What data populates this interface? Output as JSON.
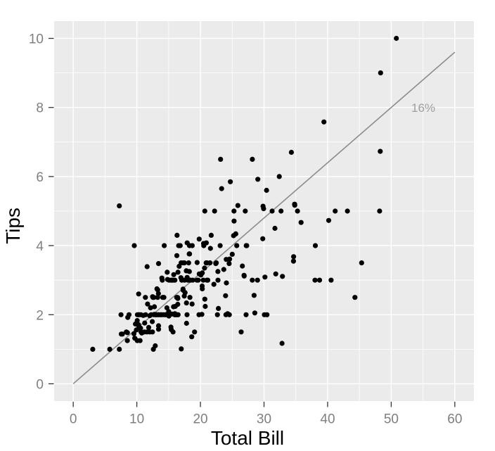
{
  "chart_data": {
    "type": "scatter",
    "title": "",
    "xlabel": "Total Bill",
    "ylabel": "Tips",
    "xlim": [
      -3,
      63
    ],
    "ylim": [
      -0.5,
      10.5
    ],
    "x_ticks": [
      0,
      10,
      20,
      30,
      40,
      50,
      60
    ],
    "y_ticks": [
      0,
      2,
      4,
      6,
      8,
      10
    ],
    "x_minor": [
      5,
      15,
      25,
      35,
      45,
      55
    ],
    "y_minor": [
      1,
      3,
      5,
      7,
      9
    ],
    "grid": true,
    "legend": "none",
    "panel_bg": "#EBEBEB",
    "grid_color": "#FFFFFF",
    "point_color": "#000000",
    "tick_color": "#333333",
    "tick_label_color": "#7F7F7F",
    "line": {
      "x1": 0,
      "y1": 0,
      "x2": 60,
      "y2": 9.6,
      "color": "#8C8C8C",
      "label": "16%",
      "label_x": 55,
      "label_y": 8,
      "label_color": "#9E9E9E"
    },
    "points": [
      [
        16.99,
        1.01
      ],
      [
        10.34,
        1.66
      ],
      [
        21.01,
        3.5
      ],
      [
        23.68,
        3.31
      ],
      [
        24.59,
        3.61
      ],
      [
        25.29,
        4.71
      ],
      [
        8.77,
        2
      ],
      [
        26.88,
        3.12
      ],
      [
        15.04,
        1.96
      ],
      [
        14.78,
        3.23
      ],
      [
        10.27,
        1.71
      ],
      [
        35.26,
        5
      ],
      [
        15.42,
        1.57
      ],
      [
        18.43,
        3
      ],
      [
        14.83,
        3.02
      ],
      [
        21.58,
        3.92
      ],
      [
        10.33,
        1.67
      ],
      [
        16.29,
        3.71
      ],
      [
        16.97,
        3.5
      ],
      [
        20.65,
        3.35
      ],
      [
        17.92,
        4.08
      ],
      [
        20.29,
        2.75
      ],
      [
        15.77,
        2.23
      ],
      [
        39.42,
        7.58
      ],
      [
        19.82,
        3.18
      ],
      [
        17.81,
        2.34
      ],
      [
        13.37,
        2
      ],
      [
        12.69,
        2
      ],
      [
        21.7,
        4.3
      ],
      [
        19.65,
        3
      ],
      [
        9.55,
        1.45
      ],
      [
        18.35,
        2.5
      ],
      [
        15.06,
        3
      ],
      [
        20.69,
        2.45
      ],
      [
        17.78,
        3.27
      ],
      [
        24.06,
        3.6
      ],
      [
        16.31,
        2
      ],
      [
        16.93,
        3.07
      ],
      [
        18.69,
        2.31
      ],
      [
        31.27,
        5
      ],
      [
        16.04,
        2.24
      ],
      [
        17.46,
        2.54
      ],
      [
        13.94,
        3.06
      ],
      [
        9.68,
        1.32
      ],
      [
        30.4,
        5.6
      ],
      [
        18.29,
        3
      ],
      [
        22.23,
        5
      ],
      [
        32.4,
        6
      ],
      [
        28.55,
        2.05
      ],
      [
        18.04,
        3
      ],
      [
        12.54,
        2.5
      ],
      [
        10.29,
        2.6
      ],
      [
        34.81,
        5.2
      ],
      [
        9.94,
        1.56
      ],
      [
        25.56,
        4.34
      ],
      [
        19.49,
        3.51
      ],
      [
        38.01,
        3
      ],
      [
        26.41,
        1.5
      ],
      [
        11.24,
        1.76
      ],
      [
        48.27,
        6.73
      ],
      [
        20.29,
        3.21
      ],
      [
        13.81,
        2
      ],
      [
        11.02,
        1.98
      ],
      [
        18.29,
        3.76
      ],
      [
        17.59,
        2.64
      ],
      [
        20.08,
        3.15
      ],
      [
        16.45,
        2.47
      ],
      [
        3.07,
        1
      ],
      [
        20.23,
        2.01
      ],
      [
        15.01,
        2.09
      ],
      [
        12.02,
        1.97
      ],
      [
        17.07,
        3
      ],
      [
        26.86,
        3.14
      ],
      [
        25.28,
        5
      ],
      [
        14.73,
        2.2
      ],
      [
        10.51,
        1.25
      ],
      [
        17.92,
        3.08
      ],
      [
        27.2,
        4
      ],
      [
        22.76,
        3
      ],
      [
        17.29,
        2.71
      ],
      [
        19.44,
        3
      ],
      [
        16.66,
        3.4
      ],
      [
        10.07,
        1.83
      ],
      [
        32.68,
        5
      ],
      [
        15.98,
        2.03
      ],
      [
        34.83,
        5.17
      ],
      [
        13.03,
        2
      ],
      [
        18.28,
        4
      ],
      [
        24.71,
        5.85
      ],
      [
        21.16,
        3
      ],
      [
        28.97,
        3
      ],
      [
        22.49,
        3.5
      ],
      [
        5.75,
        1
      ],
      [
        16.32,
        4.3
      ],
      [
        22.75,
        3.25
      ],
      [
        40.17,
        4.73
      ],
      [
        27.28,
        4
      ],
      [
        12.03,
        1.5
      ],
      [
        21.01,
        3
      ],
      [
        12.46,
        1.5
      ],
      [
        11.35,
        2.5
      ],
      [
        15.38,
        3
      ],
      [
        44.3,
        2.5
      ],
      [
        22.42,
        3.48
      ],
      [
        20.92,
        4.08
      ],
      [
        15.36,
        1.64
      ],
      [
        20.49,
        4.06
      ],
      [
        25.21,
        4.29
      ],
      [
        18.24,
        3.76
      ],
      [
        14.31,
        4
      ],
      [
        14,
        3
      ],
      [
        7.25,
        1
      ],
      [
        38.07,
        4
      ],
      [
        23.95,
        2.55
      ],
      [
        25.71,
        4
      ],
      [
        17.31,
        3.5
      ],
      [
        29.93,
        5.07
      ],
      [
        10.65,
        1.5
      ],
      [
        12.43,
        1.8
      ],
      [
        24.08,
        2.92
      ],
      [
        11.69,
        2.31
      ],
      [
        13.42,
        1.68
      ],
      [
        14.26,
        2.5
      ],
      [
        15.95,
        2
      ],
      [
        12.48,
        2.52
      ],
      [
        29.8,
        4.2
      ],
      [
        8.52,
        1.48
      ],
      [
        14.52,
        2
      ],
      [
        11.38,
        2
      ],
      [
        22.82,
        2.18
      ],
      [
        19.08,
        1.5
      ],
      [
        20.27,
        2.83
      ],
      [
        11.17,
        1.5
      ],
      [
        12.26,
        2
      ],
      [
        18.26,
        3.25
      ],
      [
        8.51,
        1.25
      ],
      [
        10.33,
        2
      ],
      [
        14.15,
        2
      ],
      [
        16,
        2
      ],
      [
        13.16,
        2.75
      ],
      [
        17.47,
        3.5
      ],
      [
        34.3,
        6.7
      ],
      [
        41.19,
        5
      ],
      [
        27.05,
        5
      ],
      [
        16.43,
        2.3
      ],
      [
        8.35,
        1.5
      ],
      [
        18.64,
        1.36
      ],
      [
        11.87,
        1.63
      ],
      [
        9.78,
        1.73
      ],
      [
        7.51,
        2
      ],
      [
        14.07,
        2.5
      ],
      [
        13.13,
        2
      ],
      [
        17.26,
        2.74
      ],
      [
        24.55,
        2
      ],
      [
        19.77,
        2
      ],
      [
        29.85,
        5.14
      ],
      [
        48.17,
        5
      ],
      [
        25,
        3.75
      ],
      [
        13.39,
        2.61
      ],
      [
        16.49,
        2
      ],
      [
        21.5,
        3.5
      ],
      [
        12.66,
        2.5
      ],
      [
        16.21,
        2
      ],
      [
        13.81,
        2
      ],
      [
        17.51,
        3
      ],
      [
        24.52,
        3.48
      ],
      [
        20.76,
        2.24
      ],
      [
        31.71,
        4.5
      ],
      [
        10.59,
        1.61
      ],
      [
        10.63,
        2
      ],
      [
        50.81,
        10
      ],
      [
        15.81,
        3.16
      ],
      [
        7.25,
        5.15
      ],
      [
        31.85,
        3.18
      ],
      [
        16.82,
        4
      ],
      [
        32.9,
        3.11
      ],
      [
        17.89,
        2
      ],
      [
        14.48,
        2
      ],
      [
        9.6,
        4
      ],
      [
        34.63,
        3.55
      ],
      [
        34.65,
        3.68
      ],
      [
        23.33,
        5.65
      ],
      [
        45.35,
        3.5
      ],
      [
        23.17,
        6.5
      ],
      [
        40.55,
        3
      ],
      [
        20.69,
        5
      ],
      [
        20.9,
        3.5
      ],
      [
        30.46,
        2
      ],
      [
        18.15,
        3.5
      ],
      [
        23.1,
        4
      ],
      [
        15.69,
        1.5
      ],
      [
        19.81,
        4.19
      ],
      [
        28.44,
        2.56
      ],
      [
        15.48,
        2.02
      ],
      [
        16.58,
        4
      ],
      [
        7.56,
        1.44
      ],
      [
        10.34,
        2
      ],
      [
        43.11,
        5
      ],
      [
        13,
        2
      ],
      [
        13.51,
        2
      ],
      [
        18.71,
        4
      ],
      [
        12.74,
        2.01
      ],
      [
        13,
        2
      ],
      [
        16.4,
        2.5
      ],
      [
        20.53,
        4
      ],
      [
        16.47,
        3.23
      ],
      [
        26.59,
        3.41
      ],
      [
        38.73,
        3
      ],
      [
        24.27,
        2.03
      ],
      [
        12.76,
        2.23
      ],
      [
        30.06,
        2
      ],
      [
        25.89,
        5.16
      ],
      [
        48.33,
        9
      ],
      [
        13.27,
        2.5
      ],
      [
        28.17,
        6.5
      ],
      [
        12.9,
        1.1
      ],
      [
        28.15,
        3
      ],
      [
        11.59,
        1.5
      ],
      [
        7.74,
        1.44
      ],
      [
        30.14,
        3.09
      ],
      [
        12.16,
        2.2
      ],
      [
        13.42,
        3.48
      ],
      [
        8.58,
        1.92
      ],
      [
        15.98,
        3
      ],
      [
        13.42,
        1.58
      ],
      [
        16.27,
        2.5
      ],
      [
        10.09,
        2
      ],
      [
        20.45,
        3
      ],
      [
        13.28,
        2.72
      ],
      [
        22.12,
        2.88
      ],
      [
        24.01,
        2
      ],
      [
        15.69,
        3
      ],
      [
        11.61,
        3.39
      ],
      [
        10.77,
        1.47
      ],
      [
        15.53,
        3
      ],
      [
        10.07,
        1.25
      ],
      [
        12.6,
        1
      ],
      [
        32.83,
        1.17
      ],
      [
        35.83,
        4.67
      ],
      [
        29.03,
        5.92
      ],
      [
        27.18,
        2
      ],
      [
        22.67,
        2
      ],
      [
        17.82,
        1.75
      ],
      [
        18.78,
        3
      ]
    ]
  }
}
